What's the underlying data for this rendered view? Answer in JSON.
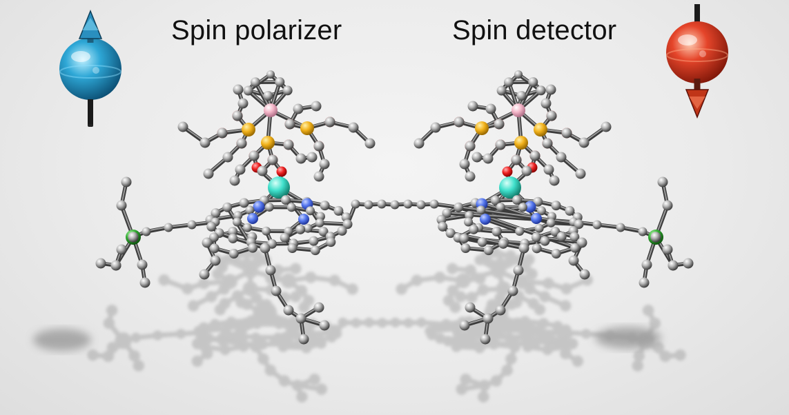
{
  "labels": {
    "left": "Spin polarizer",
    "right": "Spin detector"
  },
  "colors": {
    "background": "#ebebeb",
    "spin_up": "#2ea7d6",
    "spin_down": "#e5452a",
    "carbon": "#b8b8b8",
    "oxygen": "#ee2222",
    "phosphorus": "#f2b21c",
    "boron": "#f4b6c8",
    "cobalt": "#40e0cc",
    "nitrogen": "#5577ee",
    "silicon": "#33aa33",
    "shadow": "#b9b9b9"
  },
  "icons": {
    "spin_up": "spin-up-sphere-icon",
    "spin_down": "spin-down-sphere-icon"
  }
}
